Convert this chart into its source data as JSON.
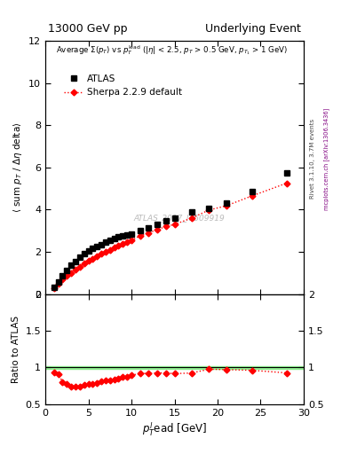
{
  "title_left": "13000 GeV pp",
  "title_right": "Underlying Event",
  "right_label_top": "Rivet 3.1.10, 3.7M events",
  "right_label_bot": "mcplots.cern.ch [arXiv:1306.3436]",
  "watermark": "ATLAS_2017_I1509919",
  "atlas_x": [
    1.0,
    1.5,
    2.0,
    2.5,
    3.0,
    3.5,
    4.0,
    4.5,
    5.0,
    5.5,
    6.0,
    6.5,
    7.0,
    7.5,
    8.0,
    8.5,
    9.0,
    9.5,
    10.0,
    11.0,
    12.0,
    13.0,
    14.0,
    15.0,
    17.0,
    19.0,
    21.0,
    24.0,
    28.0
  ],
  "atlas_y": [
    0.3,
    0.55,
    0.85,
    1.1,
    1.35,
    1.55,
    1.75,
    1.9,
    2.05,
    2.15,
    2.25,
    2.35,
    2.45,
    2.55,
    2.65,
    2.7,
    2.75,
    2.8,
    2.85,
    3.0,
    3.15,
    3.3,
    3.45,
    3.6,
    3.9,
    4.05,
    4.3,
    4.85,
    5.75
  ],
  "sherpa_x": [
    1.0,
    1.5,
    2.0,
    2.5,
    3.0,
    3.5,
    4.0,
    4.5,
    5.0,
    5.5,
    6.0,
    6.5,
    7.0,
    7.5,
    8.0,
    8.5,
    9.0,
    9.5,
    10.0,
    11.0,
    12.0,
    13.0,
    14.0,
    15.0,
    17.0,
    19.0,
    21.0,
    24.0,
    28.0
  ],
  "sherpa_y": [
    0.28,
    0.5,
    0.68,
    0.85,
    1.0,
    1.15,
    1.3,
    1.45,
    1.58,
    1.68,
    1.78,
    1.9,
    2.0,
    2.1,
    2.2,
    2.3,
    2.38,
    2.45,
    2.55,
    2.75,
    2.9,
    3.05,
    3.2,
    3.3,
    3.6,
    3.98,
    4.18,
    4.65,
    5.25
  ],
  "ratio_x": [
    1.0,
    1.5,
    2.0,
    2.5,
    3.0,
    3.5,
    4.0,
    4.5,
    5.0,
    5.5,
    6.0,
    6.5,
    7.0,
    7.5,
    8.0,
    8.5,
    9.0,
    9.5,
    10.0,
    11.0,
    12.0,
    13.0,
    14.0,
    15.0,
    17.0,
    19.0,
    21.0,
    24.0,
    28.0
  ],
  "ratio_y": [
    0.93,
    0.91,
    0.8,
    0.77,
    0.74,
    0.74,
    0.74,
    0.76,
    0.77,
    0.78,
    0.79,
    0.81,
    0.82,
    0.82,
    0.83,
    0.85,
    0.865,
    0.875,
    0.895,
    0.915,
    0.92,
    0.925,
    0.925,
    0.915,
    0.923,
    0.975,
    0.97,
    0.96,
    0.925
  ],
  "ylim_main": [
    0,
    12
  ],
  "ylim_ratio": [
    0.5,
    2.0
  ],
  "xlim": [
    0,
    30
  ],
  "yticks_main": [
    0,
    2,
    4,
    6,
    8,
    10,
    12
  ],
  "yticks_ratio": [
    0.5,
    1.0,
    1.5,
    2.0
  ],
  "xticks": [
    0,
    5,
    10,
    15,
    20,
    25,
    30
  ],
  "atlas_color": "black",
  "sherpa_color": "red",
  "ref_band_color": "#90ee90",
  "ref_line_color": "black",
  "bg_color": "white"
}
